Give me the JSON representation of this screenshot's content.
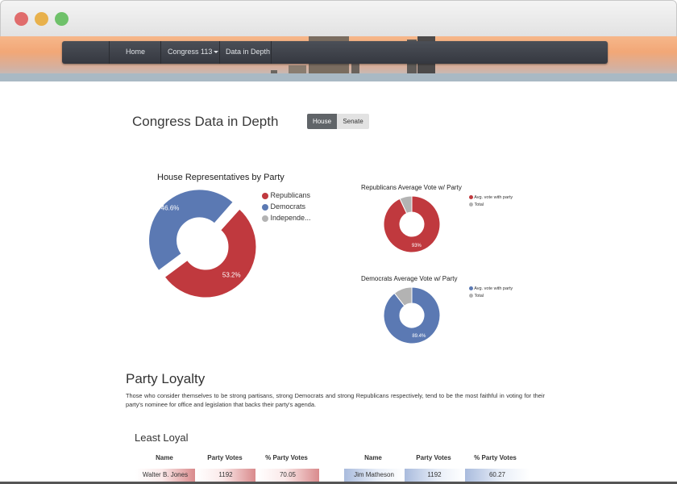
{
  "nav": {
    "home": "Home",
    "congress": "Congress 113",
    "data_in_depth": "Data in Depth"
  },
  "header": {
    "title": "Congress Data in Depth",
    "toggle": [
      "House",
      "Senate"
    ],
    "active": "House"
  },
  "colors": {
    "republican": "#c0393e",
    "democrat": "#5b79b3",
    "independent": "#b3b3b3"
  },
  "chart_data": [
    {
      "type": "pie",
      "title": "House Representatives by Party",
      "labels": [
        "Republicans",
        "Democrats",
        "Independe..."
      ],
      "values": [
        53.2,
        46.6,
        0.2
      ],
      "data_labels": [
        "53.2%",
        "46.6%",
        ""
      ]
    },
    {
      "type": "pie",
      "title": "Republicans Average Vote w/ Party",
      "labels": [
        "Avg. vote with party",
        "Total"
      ],
      "values": [
        93,
        7
      ],
      "data_labels": [
        "93%",
        ""
      ]
    },
    {
      "type": "pie",
      "title": "Democrats Average Vote w/ Party",
      "labels": [
        "Avg. vote with party",
        "Total"
      ],
      "values": [
        89.4,
        10.6
      ],
      "data_labels": [
        "89.4%",
        ""
      ]
    }
  ],
  "loyalty": {
    "title": "Party Loyalty",
    "paragraph": "Those who consider themselves to be strong partisans, strong Democrats and strong Republicans respectively, tend to be the most faithful in voting for their party's nominee for office and legislation that backs their party's agenda."
  },
  "least_loyal": {
    "title": "Least Loyal",
    "columns": [
      "Name",
      "Party Votes",
      "% Party Votes"
    ],
    "left_row": [
      "Walter B. Jones",
      "1192",
      "70.05"
    ],
    "right_row": [
      "Jim Matheson",
      "1192",
      "60.27"
    ]
  }
}
